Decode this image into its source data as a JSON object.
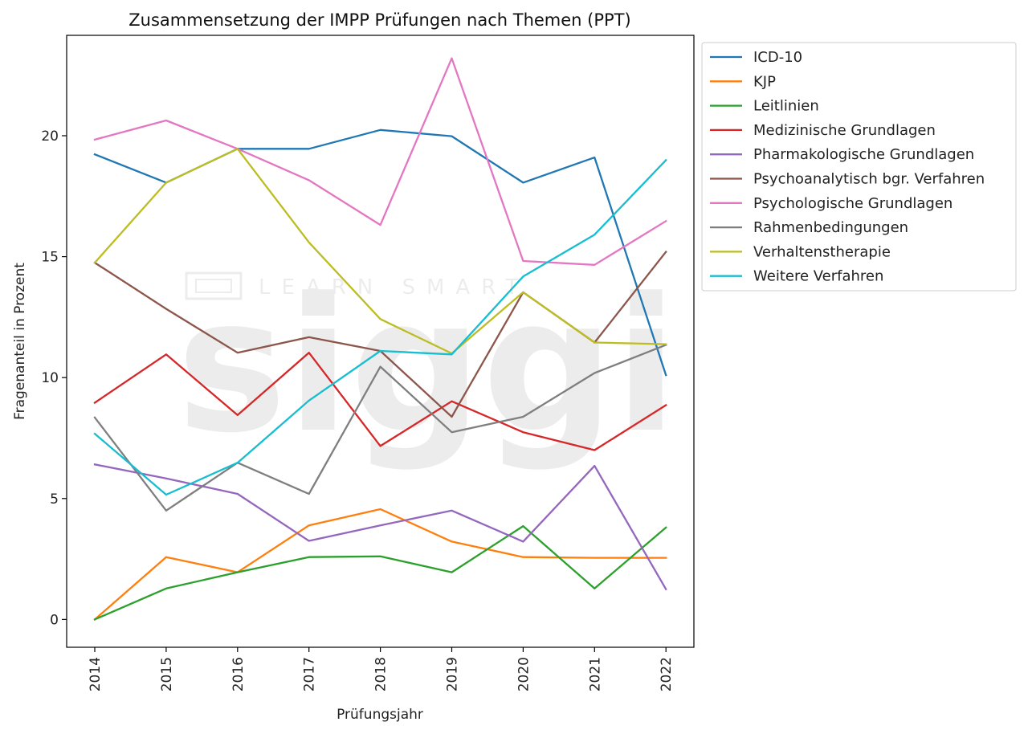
{
  "chart_data": {
    "type": "line",
    "title": "Zusammensetzung der IMPP Prüfungen nach Themen (PPT)",
    "xlabel": "Prüfungsjahr",
    "ylabel": "Fragenanteil in Prozent",
    "x": [
      "2014",
      "2015",
      "2016",
      "2017",
      "2018",
      "2019",
      "2020",
      "2021",
      "2022"
    ],
    "yticks": [
      "0",
      "5",
      "10",
      "15",
      "20"
    ],
    "ylim": [
      -1.15,
      24.15
    ],
    "grid": false,
    "legend": "outside-top-right",
    "series": [
      {
        "name": "ICD-10",
        "color": "#1f77b4",
        "values": [
          19.23,
          18.06,
          19.46,
          19.46,
          20.24,
          19.98,
          18.06,
          19.1,
          10.1
        ]
      },
      {
        "name": "KJP",
        "color": "#ff7f0e",
        "values": [
          0.0,
          2.58,
          1.95,
          3.89,
          4.56,
          3.22,
          2.58,
          2.55,
          2.55
        ]
      },
      {
        "name": "Leitlinien",
        "color": "#2ca02c",
        "values": [
          0.0,
          1.28,
          1.95,
          2.58,
          2.61,
          1.95,
          3.86,
          1.28,
          3.8
        ]
      },
      {
        "name": "Medizinische Grundlagen",
        "color": "#d62728",
        "values": [
          8.96,
          10.96,
          8.45,
          11.03,
          7.17,
          9.02,
          7.74,
          7.0,
          8.86
        ]
      },
      {
        "name": "Pharmakologische Grundlagen",
        "color": "#9467bd",
        "values": [
          6.41,
          5.83,
          5.19,
          3.25,
          3.89,
          4.5,
          3.22,
          6.35,
          1.25
        ]
      },
      {
        "name": "Psychoanalytisch bgr. Verfahren",
        "color": "#8c564b",
        "values": [
          14.75,
          12.84,
          11.03,
          11.67,
          11.1,
          8.38,
          13.53,
          11.45,
          15.2
        ]
      },
      {
        "name": "Psychologische Grundlagen",
        "color": "#e377c2",
        "values": [
          19.84,
          20.63,
          19.46,
          18.16,
          16.31,
          23.2,
          14.82,
          14.66,
          16.47
        ]
      },
      {
        "name": "Rahmenbedingungen",
        "color": "#7f7f7f",
        "values": [
          8.35,
          4.5,
          6.48,
          5.19,
          10.45,
          7.74,
          8.38,
          10.19,
          11.35
        ]
      },
      {
        "name": "Verhaltenstherapie",
        "color": "#bcbd22",
        "values": [
          14.75,
          18.06,
          19.46,
          15.59,
          12.42,
          11.0,
          13.53,
          11.45,
          11.38
        ]
      },
      {
        "name": "Weitere Verfahren",
        "color": "#17becf",
        "values": [
          7.68,
          5.16,
          6.48,
          9.05,
          11.1,
          10.96,
          14.18,
          15.91,
          18.99
        ]
      }
    ]
  }
}
